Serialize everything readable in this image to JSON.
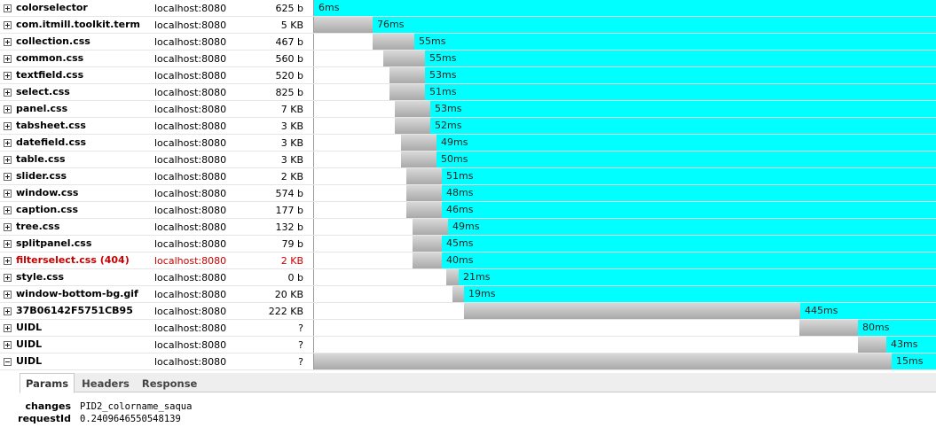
{
  "requests": [
    {
      "url": "colorselector",
      "domain": "localhost:8080",
      "size": "625 b",
      "time": "6ms",
      "wait": 0,
      "load": 0,
      "cache": 100,
      "expanded": false,
      "error": false
    },
    {
      "url": "com.itmill.toolkit.term",
      "domain": "localhost:8080",
      "size": "5 KB",
      "time": "76ms",
      "wait": 0,
      "load": 9.4,
      "cache": 90.6,
      "expanded": false,
      "error": false
    },
    {
      "url": "collection.css",
      "domain": "localhost:8080",
      "size": "467 b",
      "time": "55ms",
      "wait": 9.4,
      "load": 6.7,
      "cache": 83.9,
      "expanded": false,
      "error": false
    },
    {
      "url": "common.css",
      "domain": "localhost:8080",
      "size": "560 b",
      "time": "55ms",
      "wait": 11.1,
      "load": 6.7,
      "cache": 82.2,
      "expanded": false,
      "error": false
    },
    {
      "url": "textfield.css",
      "domain": "localhost:8080",
      "size": "520 b",
      "time": "53ms",
      "wait": 12.1,
      "load": 5.7,
      "cache": 82.2,
      "expanded": false,
      "error": false
    },
    {
      "url": "select.css",
      "domain": "localhost:8080",
      "size": "825 b",
      "time": "51ms",
      "wait": 12.1,
      "load": 5.7,
      "cache": 82.2,
      "expanded": false,
      "error": false
    },
    {
      "url": "panel.css",
      "domain": "localhost:8080",
      "size": "7 KB",
      "time": "53ms",
      "wait": 13.0,
      "load": 5.7,
      "cache": 81.3,
      "expanded": false,
      "error": false
    },
    {
      "url": "tabsheet.css",
      "domain": "localhost:8080",
      "size": "3 KB",
      "time": "52ms",
      "wait": 13.0,
      "load": 5.7,
      "cache": 81.3,
      "expanded": false,
      "error": false
    },
    {
      "url": "datefield.css",
      "domain": "localhost:8080",
      "size": "3 KB",
      "time": "49ms",
      "wait": 14.0,
      "load": 5.7,
      "cache": 80.3,
      "expanded": false,
      "error": false
    },
    {
      "url": "table.css",
      "domain": "localhost:8080",
      "size": "3 KB",
      "time": "50ms",
      "wait": 14.0,
      "load": 5.7,
      "cache": 80.3,
      "expanded": false,
      "error": false
    },
    {
      "url": "slider.css",
      "domain": "localhost:8080",
      "size": "2 KB",
      "time": "51ms",
      "wait": 14.8,
      "load": 5.7,
      "cache": 79.5,
      "expanded": false,
      "error": false
    },
    {
      "url": "window.css",
      "domain": "localhost:8080",
      "size": "574 b",
      "time": "48ms",
      "wait": 14.8,
      "load": 5.7,
      "cache": 79.5,
      "expanded": false,
      "error": false
    },
    {
      "url": "caption.css",
      "domain": "localhost:8080",
      "size": "177 b",
      "time": "46ms",
      "wait": 14.8,
      "load": 5.7,
      "cache": 79.5,
      "expanded": false,
      "error": false
    },
    {
      "url": "tree.css",
      "domain": "localhost:8080",
      "size": "132 b",
      "time": "49ms",
      "wait": 15.8,
      "load": 5.7,
      "cache": 78.5,
      "expanded": false,
      "error": false
    },
    {
      "url": "splitpanel.css",
      "domain": "localhost:8080",
      "size": "79 b",
      "time": "45ms",
      "wait": 15.8,
      "load": 4.7,
      "cache": 79.5,
      "expanded": false,
      "error": false
    },
    {
      "url": "filterselect.css (404)",
      "domain": "localhost:8080",
      "size": "2 KB",
      "time": "40ms",
      "wait": 15.8,
      "load": 4.7,
      "cache": 79.5,
      "expanded": false,
      "error": true
    },
    {
      "url": "style.css",
      "domain": "localhost:8080",
      "size": "0 b",
      "time": "21ms",
      "wait": 21.3,
      "load": 2.0,
      "cache": 76.7,
      "expanded": false,
      "error": false
    },
    {
      "url": "window-bottom-bg.gif",
      "domain": "localhost:8080",
      "size": "20 KB",
      "time": "19ms",
      "wait": 22.2,
      "load": 1.9,
      "cache": 75.9,
      "expanded": false,
      "error": false
    },
    {
      "url": "37B06142F5751CB95",
      "domain": "localhost:8080",
      "size": "222 KB",
      "time": "445ms",
      "wait": 24.1,
      "load": 54.0,
      "cache": 21.9,
      "expanded": false,
      "error": false
    },
    {
      "url": "UIDL",
      "domain": "localhost:8080",
      "size": "?",
      "time": "80ms",
      "wait": 78.1,
      "load": 9.4,
      "cache": 12.5,
      "expanded": false,
      "error": false
    },
    {
      "url": "UIDL",
      "domain": "localhost:8080",
      "size": "?",
      "time": "43ms",
      "wait": 87.5,
      "load": 4.6,
      "cache": 7.9,
      "expanded": false,
      "error": false
    },
    {
      "url": "UIDL",
      "domain": "localhost:8080",
      "size": "?",
      "time": "15ms",
      "wait": 0,
      "load": 92.9,
      "cache": 7.1,
      "expanded": true,
      "error": false
    }
  ],
  "detail": {
    "tabs": [
      "Params",
      "Headers",
      "Response"
    ],
    "selected_tab": "Params",
    "params": [
      {
        "name": "changes",
        "value": "PID2_colorname_s\u001f\u001faqua"
      },
      {
        "name": "requestId",
        "value": "0.2409646550548139"
      }
    ]
  },
  "colors": {
    "cache": "#00ffff",
    "load": "#b0b0b0",
    "error": "#cc0000"
  }
}
